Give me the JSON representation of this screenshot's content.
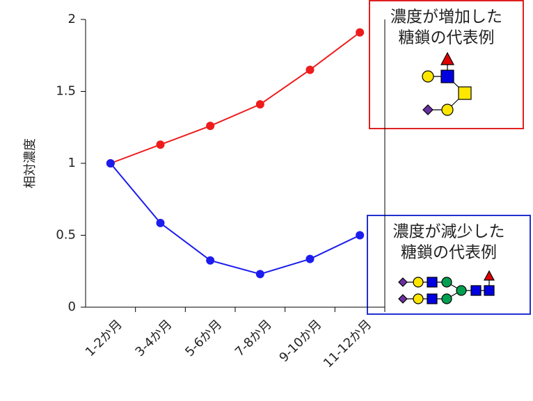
{
  "chart_data": {
    "type": "line",
    "y_label": "相対濃度",
    "categories": [
      "1-2か月",
      "3-4か月",
      "5-6か月",
      "7-8か月",
      "9-10か月",
      "11-12か月"
    ],
    "series": [
      {
        "color": "#ee1c1c",
        "values": [
          1,
          1.13,
          1.26,
          1.41,
          1.65,
          1.91
        ]
      },
      {
        "color": "#1c1cee",
        "values": [
          1,
          0.585,
          0.325,
          0.23,
          0.335,
          0.5
        ]
      }
    ],
    "ylim": [
      0,
      2
    ],
    "yticks": [
      0,
      0.5,
      1,
      1.5,
      2
    ],
    "annotations": [
      {
        "lines": [
          "濃度が増加した",
          "糖鎖の代表例"
        ],
        "color": "#e02020"
      },
      {
        "lines": [
          "濃度が減少した",
          "糖鎖の代表例"
        ],
        "color": "#2030d0"
      }
    ]
  }
}
